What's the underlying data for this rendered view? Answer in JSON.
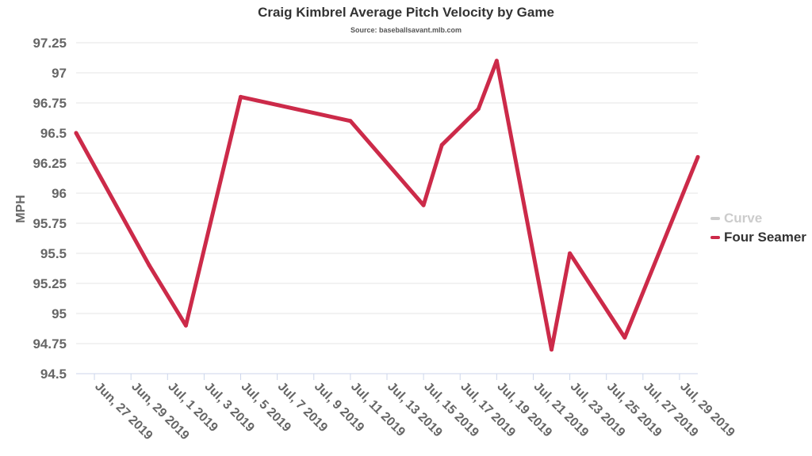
{
  "chart_data": {
    "type": "line",
    "title": "Craig Kimbrel Average Pitch Velocity by Game",
    "subtitle": "Source: baseballsavant.mlb.com",
    "xlabel": "",
    "ylabel": "MPH",
    "ylim": [
      94.5,
      97.25
    ],
    "yticks": [
      "94.5",
      "94.75",
      "95",
      "95.25",
      "95.5",
      "95.75",
      "96",
      "96.25",
      "96.5",
      "96.75",
      "97",
      "97.25"
    ],
    "x_range": [
      "2019-06-26",
      "2019-07-30"
    ],
    "xticks": [
      {
        "date": "2019-06-27",
        "label": "Jun, 27 2019"
      },
      {
        "date": "2019-06-29",
        "label": "Jun, 29 2019"
      },
      {
        "date": "2019-07-01",
        "label": "Jul, 1 2019"
      },
      {
        "date": "2019-07-03",
        "label": "Jul, 3 2019"
      },
      {
        "date": "2019-07-05",
        "label": "Jul, 5 2019"
      },
      {
        "date": "2019-07-07",
        "label": "Jul, 7 2019"
      },
      {
        "date": "2019-07-09",
        "label": "Jul, 9 2019"
      },
      {
        "date": "2019-07-11",
        "label": "Jul, 11 2019"
      },
      {
        "date": "2019-07-13",
        "label": "Jul, 13 2019"
      },
      {
        "date": "2019-07-15",
        "label": "Jul, 15 2019"
      },
      {
        "date": "2019-07-17",
        "label": "Jul, 17 2019"
      },
      {
        "date": "2019-07-19",
        "label": "Jul, 19 2019"
      },
      {
        "date": "2019-07-21",
        "label": "Jul, 21 2019"
      },
      {
        "date": "2019-07-23",
        "label": "Jul, 23 2019"
      },
      {
        "date": "2019-07-25",
        "label": "Jul, 25 2019"
      },
      {
        "date": "2019-07-27",
        "label": "Jul, 27 2019"
      },
      {
        "date": "2019-07-29",
        "label": "Jul, 29 2019"
      }
    ],
    "grid": true,
    "legend_position": "right",
    "series": [
      {
        "name": "Curve",
        "color": "#cccccc",
        "visible": false,
        "points": []
      },
      {
        "name": "Four Seamer",
        "color": "#cc2a49",
        "visible": true,
        "points": [
          {
            "x": "2019-06-26",
            "y": 96.5
          },
          {
            "x": "2019-06-30",
            "y": 95.4
          },
          {
            "x": "2019-07-02",
            "y": 94.9
          },
          {
            "x": "2019-07-05",
            "y": 96.8
          },
          {
            "x": "2019-07-11",
            "y": 96.6
          },
          {
            "x": "2019-07-15",
            "y": 95.9
          },
          {
            "x": "2019-07-16",
            "y": 96.4
          },
          {
            "x": "2019-07-18",
            "y": 96.7
          },
          {
            "x": "2019-07-19",
            "y": 97.1
          },
          {
            "x": "2019-07-22",
            "y": 94.7
          },
          {
            "x": "2019-07-23",
            "y": 95.5
          },
          {
            "x": "2019-07-26",
            "y": 94.8
          },
          {
            "x": "2019-07-30",
            "y": 96.3
          }
        ]
      }
    ]
  }
}
